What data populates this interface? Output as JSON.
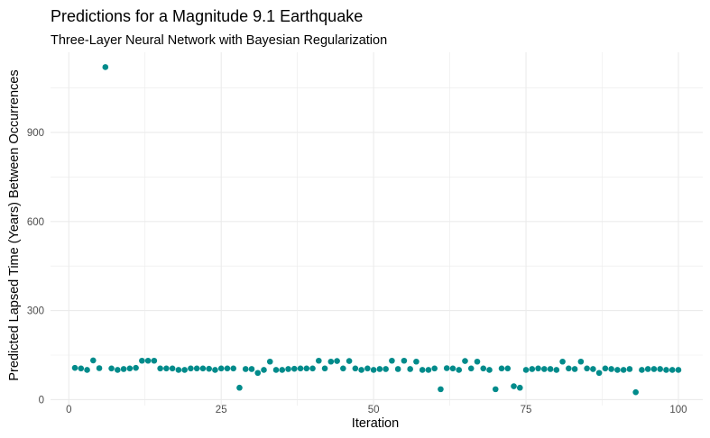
{
  "chart_data": {
    "type": "scatter",
    "title": "Predictions for a Magnitude 9.1 Earthquake",
    "subtitle": "Three-Layer Neural Network with Bayesian Regularization",
    "xlabel": "Iteration",
    "ylabel": "Predicted Lapsed Time (Years) Between Occurrences",
    "xlim": [
      -3,
      104
    ],
    "ylim": [
      -20,
      1170
    ],
    "x_ticks": [
      0,
      25,
      50,
      75,
      100
    ],
    "y_ticks": [
      0,
      300,
      600,
      900
    ],
    "grid": true,
    "point_color": "#008B8B",
    "series": [
      {
        "x": [
          1,
          2,
          3,
          4,
          5,
          6,
          7,
          8,
          9,
          10,
          11,
          12,
          13,
          14,
          15,
          16,
          17,
          18,
          19,
          20,
          21,
          22,
          23,
          24,
          25,
          26,
          27,
          28,
          29,
          30,
          31,
          32,
          33,
          34,
          35,
          36,
          37,
          38,
          39,
          40,
          41,
          42,
          43,
          44,
          45,
          46,
          47,
          48,
          49,
          50,
          51,
          52,
          53,
          54,
          55,
          56,
          57,
          58,
          59,
          60,
          61,
          62,
          63,
          64,
          65,
          66,
          67,
          68,
          69,
          70,
          71,
          72,
          73,
          74,
          75,
          76,
          77,
          78,
          79,
          80,
          81,
          82,
          83,
          84,
          85,
          86,
          87,
          88,
          89,
          90,
          91,
          92,
          93,
          94,
          95,
          96,
          97,
          98,
          99,
          100
        ],
        "y": [
          107,
          105,
          100,
          132,
          106,
          1120,
          105,
          100,
          103,
          105,
          107,
          131,
          131,
          131,
          105,
          105,
          105,
          100,
          100,
          105,
          105,
          105,
          104,
          100,
          105,
          105,
          105,
          40,
          103,
          103,
          90,
          100,
          128,
          100,
          100,
          103,
          104,
          105,
          105,
          105,
          131,
          105,
          128,
          130,
          105,
          130,
          105,
          100,
          105,
          100,
          103,
          103,
          131,
          103,
          131,
          103,
          128,
          100,
          100,
          105,
          35,
          106,
          105,
          100,
          130,
          105,
          128,
          105,
          100,
          35,
          105,
          105,
          45,
          40,
          100,
          103,
          105,
          103,
          103,
          100,
          128,
          105,
          103,
          128,
          105,
          103,
          90,
          105,
          103,
          100,
          100,
          103,
          25,
          100,
          103,
          103,
          103,
          100,
          100,
          100
        ]
      }
    ]
  }
}
